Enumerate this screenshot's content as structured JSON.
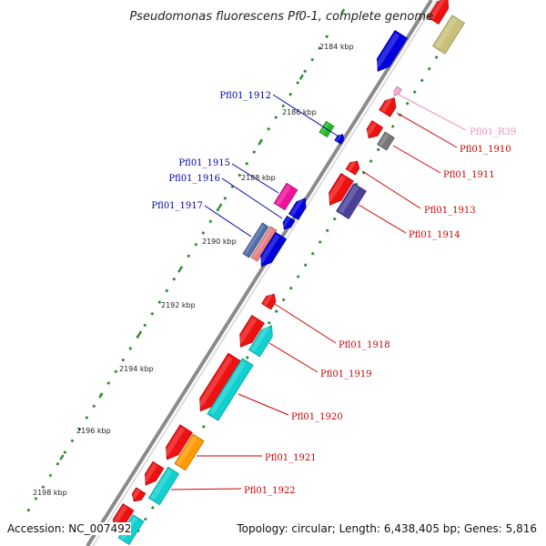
{
  "title": "Pseudomonas fluorescens Pf0-1, complete genome",
  "footer": {
    "accession": "Accession: NC_007492",
    "summary": "Topology: circular; Length: 6,438,405 bp; Genes: 5,816"
  },
  "colors": {
    "backbone": "#8a8a8a",
    "tick": "#2e8b2e",
    "label_red": "#cc0000",
    "label_blue": "#0000aa",
    "label_pink": "#f08cbc"
  },
  "scale_labels": [
    {
      "id": "kbp-2184",
      "text": "2184 kbp"
    },
    {
      "id": "kbp-2186",
      "text": "2186 kbp"
    },
    {
      "id": "kbp-2188",
      "text": "2188 kbp"
    },
    {
      "id": "kbp-2190",
      "text": "2190 kbp"
    },
    {
      "id": "kbp-2192",
      "text": "2192 kbp"
    },
    {
      "id": "kbp-2194",
      "text": "2194 kbp"
    },
    {
      "id": "kbp-2196",
      "text": "2196 kbp"
    },
    {
      "id": "kbp-2198",
      "text": "2198 kbp"
    }
  ],
  "gene_labels": [
    {
      "id": "Pfl01_R39",
      "text": "Pfl01_R39",
      "color": "#f08cbc"
    },
    {
      "id": "Pfl01_1910",
      "text": "Pfl01_1910",
      "color": "#cc0000"
    },
    {
      "id": "Pfl01_1911",
      "text": "Pfl01_1911",
      "color": "#cc0000"
    },
    {
      "id": "Pfl01_1912",
      "text": "Pfl01_1912",
      "color": "#0000aa"
    },
    {
      "id": "Pfl01_1913",
      "text": "Pfl01_1913",
      "color": "#cc0000"
    },
    {
      "id": "Pfl01_1914",
      "text": "Pfl01_1914",
      "color": "#cc0000"
    },
    {
      "id": "Pfl01_1915",
      "text": "Pfl01_1915",
      "color": "#0000aa"
    },
    {
      "id": "Pfl01_1916",
      "text": "Pfl01_1916",
      "color": "#0000aa"
    },
    {
      "id": "Pfl01_1917",
      "text": "Pfl01_1917",
      "color": "#0000aa"
    },
    {
      "id": "Pfl01_1918",
      "text": "Pfl01_1918",
      "color": "#cc0000"
    },
    {
      "id": "Pfl01_1919",
      "text": "Pfl01_1919",
      "color": "#cc0000"
    },
    {
      "id": "Pfl01_1920",
      "text": "Pfl01_1920",
      "color": "#cc0000"
    },
    {
      "id": "Pfl01_1921",
      "text": "Pfl01_1921",
      "color": "#cc0000"
    },
    {
      "id": "Pfl01_1922",
      "text": "Pfl01_1922",
      "color": "#cc0000"
    }
  ],
  "features": [
    {
      "id": "f-top-red",
      "color": "#ee1111"
    },
    {
      "id": "f-top-khaki",
      "color": "#c8c07a"
    },
    {
      "id": "f-blue-big",
      "color": "#0000dd"
    },
    {
      "id": "f-pink-rna",
      "color": "#f4a6c8"
    },
    {
      "id": "f-red-1910",
      "color": "#ee1111"
    },
    {
      "id": "f-green",
      "color": "#22bb22"
    },
    {
      "id": "f-blue-small-1912",
      "color": "#0000dd"
    },
    {
      "id": "f-red-1911a",
      "color": "#ee1111"
    },
    {
      "id": "f-grey-1911",
      "color": "#777777"
    },
    {
      "id": "f-red-1913a",
      "color": "#ee1111"
    },
    {
      "id": "f-red-1913b",
      "color": "#ee1111"
    },
    {
      "id": "f-purple-1914",
      "color": "#4a3f99"
    },
    {
      "id": "f-magenta-1915",
      "color": "#ee1199"
    },
    {
      "id": "f-blue-1915b",
      "color": "#0000dd"
    },
    {
      "id": "f-blue-1916",
      "color": "#0000dd"
    },
    {
      "id": "f-steel-1917",
      "color": "#4f6fa8"
    },
    {
      "id": "f-salmon-1917",
      "color": "#e88080"
    },
    {
      "id": "f-blue-1917b",
      "color": "#0000dd"
    },
    {
      "id": "f-red-1918",
      "color": "#ee1111"
    },
    {
      "id": "f-red-1919",
      "color": "#ee1111"
    },
    {
      "id": "f-cyan-1919",
      "color": "#11d0d0"
    },
    {
      "id": "f-red-1920",
      "color": "#ee1111"
    },
    {
      "id": "f-cyan-1920",
      "color": "#11d0d0"
    },
    {
      "id": "f-red-1921",
      "color": "#ee1111"
    },
    {
      "id": "f-orange-1921",
      "color": "#ff9900"
    },
    {
      "id": "f-red-1922a",
      "color": "#ee1111"
    },
    {
      "id": "f-cyan-1922",
      "color": "#11d0d0"
    },
    {
      "id": "f-red-1922b",
      "color": "#ee1111"
    },
    {
      "id": "f-red-1922c",
      "color": "#ee1111"
    },
    {
      "id": "f-cyan-bottom",
      "color": "#11d0d0"
    }
  ]
}
